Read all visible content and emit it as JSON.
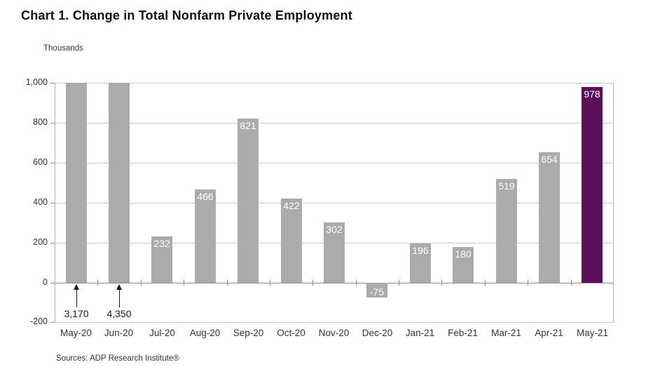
{
  "title": "Chart 1. Change in Total Nonfarm Private Employment",
  "units_label": "Thousands",
  "source": "Sources: ADP Research Institute®",
  "chart_data": {
    "type": "bar",
    "title": "Chart 1. Change in Total Nonfarm Private Employment",
    "ylabel": "Thousands",
    "xlabel": "",
    "categories": [
      "May-20",
      "Jun-20",
      "Jul-20",
      "Aug-20",
      "Sep-20",
      "Oct-20",
      "Nov-20",
      "Dec-20",
      "Jan-21",
      "Feb-21",
      "Mar-21",
      "Apr-21",
      "May-21"
    ],
    "values": [
      3170,
      4350,
      232,
      466,
      821,
      422,
      302,
      -75,
      196,
      180,
      519,
      654,
      978
    ],
    "bar_labels": [
      null,
      null,
      "232",
      "466",
      "821",
      "422",
      "302",
      "-75",
      "196",
      "180",
      "519",
      "654",
      "978"
    ],
    "annotations": [
      {
        "category_index": 0,
        "label": "3,170"
      },
      {
        "category_index": 1,
        "label": "4,350"
      }
    ],
    "ylim": [
      -200,
      1000
    ],
    "ytick_values": [
      1000,
      800,
      600,
      400,
      200,
      0,
      -200
    ],
    "ytick_labels": [
      "1,000",
      "800",
      "600",
      "400",
      "200",
      "0",
      "-200"
    ],
    "grid": true,
    "legend": false,
    "colors": {
      "bar_default": "#ABABAB",
      "bar_highlight": "#5A1058",
      "highlight_index": 12,
      "value_label_text": "#FFFFFF",
      "gridline": "#C7C7C7",
      "zero_line": "#8C8C8C"
    }
  }
}
